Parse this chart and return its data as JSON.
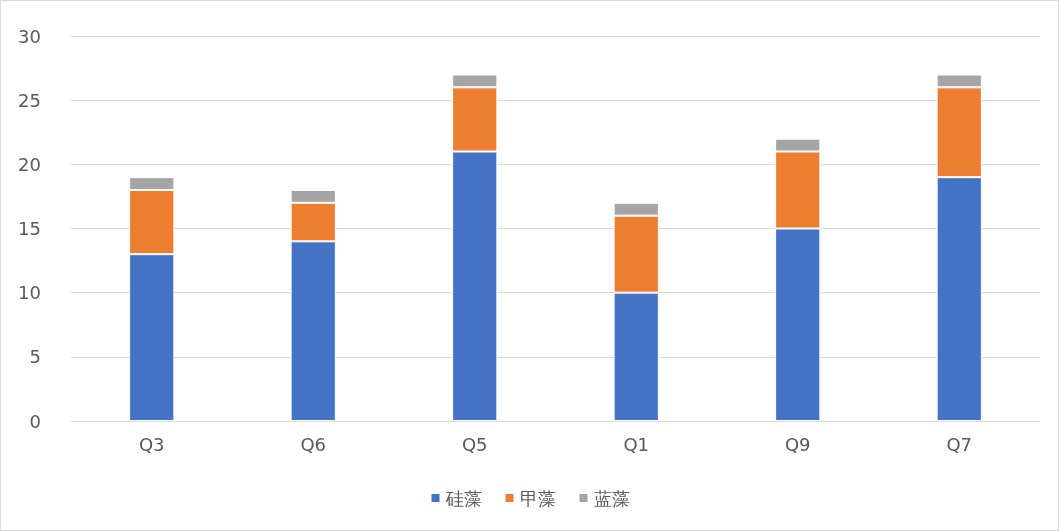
{
  "chart_data": {
    "type": "bar",
    "stacked": true,
    "categories": [
      "Q3",
      "Q6",
      "Q5",
      "Q1",
      "Q9",
      "Q7"
    ],
    "series": [
      {
        "name": "硅藻",
        "color": "#4472c4",
        "values": [
          13,
          14,
          21,
          10,
          15,
          19
        ]
      },
      {
        "name": "甲藻",
        "color": "#ed7d31",
        "values": [
          5,
          3,
          5,
          6,
          6,
          7
        ]
      },
      {
        "name": "蓝藻",
        "color": "#a5a5a5",
        "values": [
          1,
          1,
          1,
          1,
          1,
          1
        ]
      }
    ],
    "ylim": [
      0,
      30
    ],
    "yticks": [
      0,
      5,
      10,
      15,
      20,
      25,
      30
    ],
    "grid": "y",
    "legend": "bottom"
  }
}
